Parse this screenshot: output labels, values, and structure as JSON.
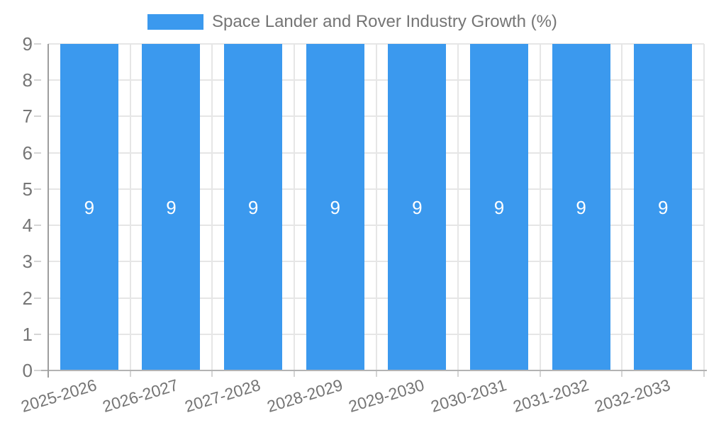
{
  "chart_data": {
    "type": "bar",
    "title": "Space Lander and Rover Industry Growth (%)",
    "categories": [
      "2025-2026",
      "2026-2027",
      "2027-2028",
      "2028-2029",
      "2029-2030",
      "2030-2031",
      "2031-2032",
      "2032-2033"
    ],
    "values": [
      9,
      9,
      9,
      9,
      9,
      9,
      9,
      9
    ],
    "xlabel": "",
    "ylabel": "",
    "ylim": [
      0,
      9
    ],
    "yticks": [
      0,
      1,
      2,
      3,
      4,
      5,
      6,
      7,
      8,
      9
    ],
    "legend_position": "top",
    "grid": true,
    "colors": {
      "bar": "#3b99ee",
      "grid": "#e6e6e6",
      "tick": "#d4d4d4",
      "axis_x": "#b3b3b3",
      "axis_y": "#9e9e9e",
      "text": "#757575",
      "value_label": "#ffffff",
      "background": "#ffffff"
    }
  }
}
